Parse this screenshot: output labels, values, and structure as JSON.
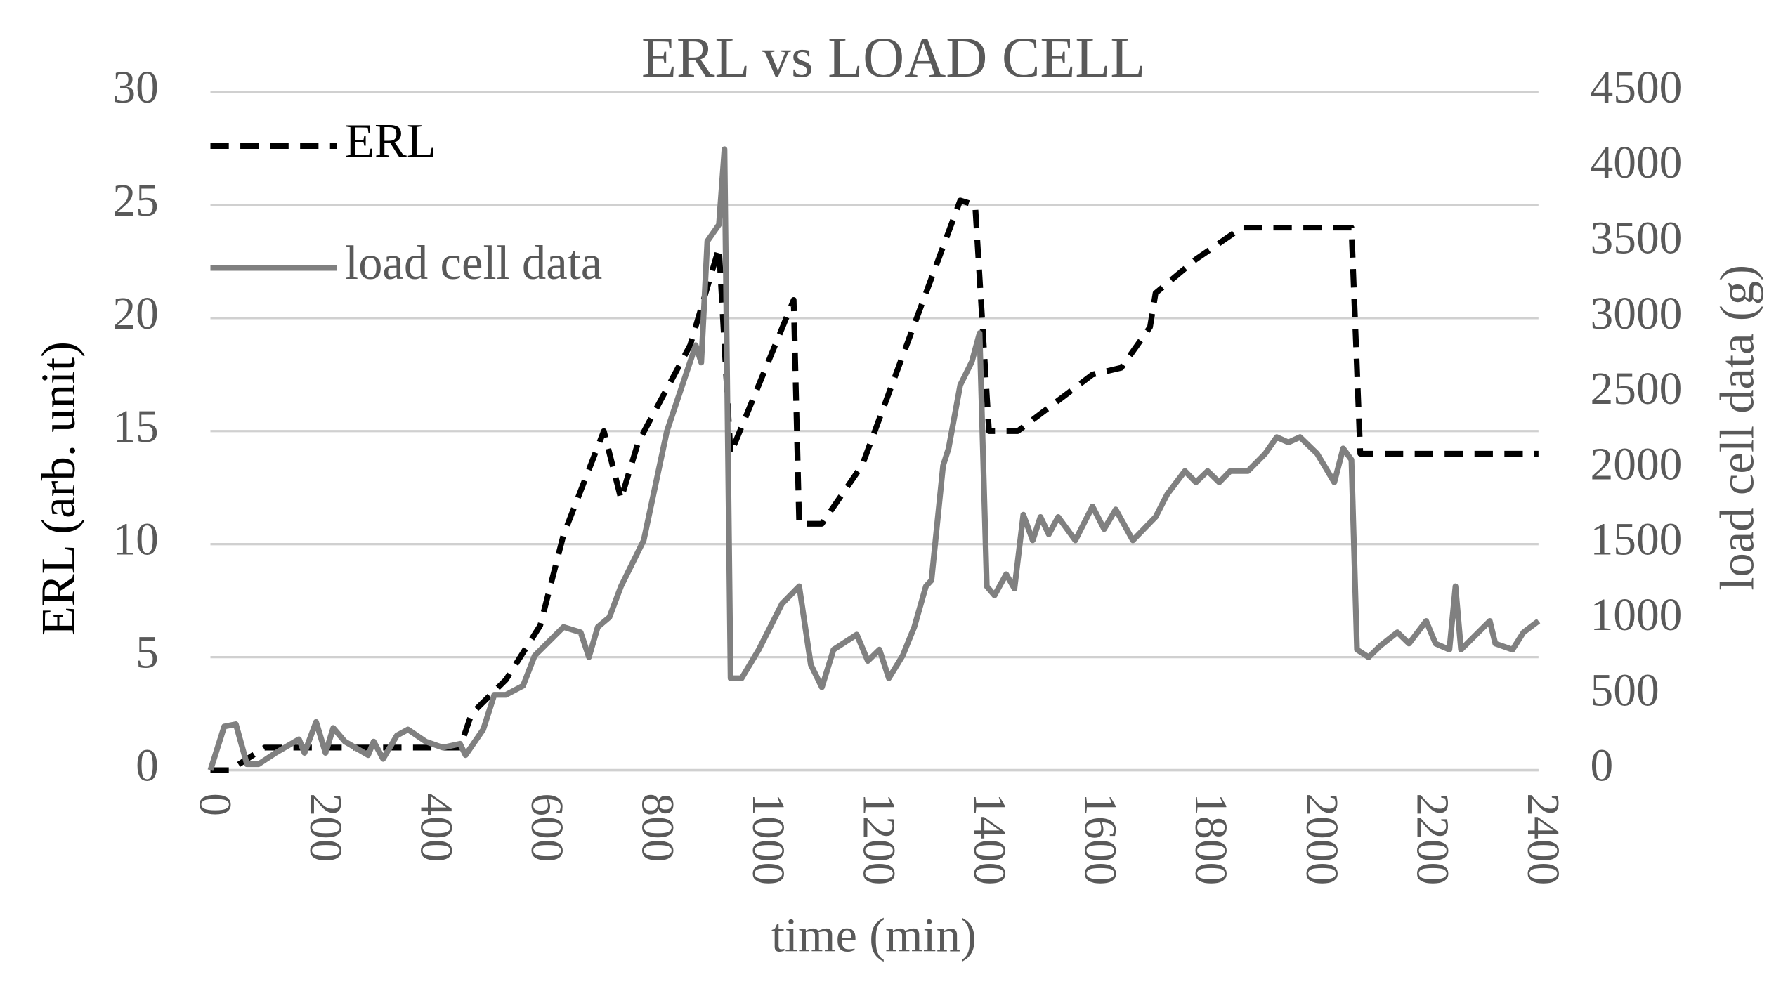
{
  "chart_data": {
    "type": "line",
    "title": "ERL vs LOAD CELL",
    "x_label": "time (min)",
    "y_label": "ERL (arb. unit)",
    "y2_label": "load cell data (g)",
    "xlim": [
      0,
      2400
    ],
    "xticks": [
      0,
      200,
      400,
      600,
      800,
      1000,
      1200,
      1400,
      1600,
      1800,
      2000,
      2200,
      2400
    ],
    "ylim": [
      0,
      30
    ],
    "yticks": [
      0,
      5,
      10,
      15,
      20,
      25,
      30
    ],
    "y2lim": [
      0,
      4500
    ],
    "y2ticks": [
      0,
      500,
      1000,
      1500,
      2000,
      2500,
      3000,
      3500,
      4000,
      4500
    ],
    "grid": true,
    "legend": "upper left",
    "series": [
      {
        "name": "ERL",
        "color": "#000000",
        "dash": true,
        "x": [
          0,
          35,
          98,
          389,
          451,
          472,
          534,
          596,
          638,
          711,
          742,
          773,
          867,
          919,
          940,
          1054,
          1064,
          1105,
          1178,
          1355,
          1382,
          1407,
          1459,
          1594,
          1646,
          1698,
          1708,
          1781,
          1864,
          2062,
          2078,
          2400
        ],
        "values": [
          0,
          0,
          1,
          1,
          1,
          2.5,
          4,
          6.4,
          10.4,
          15,
          12,
          14.5,
          18.8,
          23.1,
          14,
          20.8,
          10.9,
          10.9,
          13.5,
          25.2,
          25,
          15,
          15,
          17.5,
          17.8,
          19.6,
          21.1,
          22.6,
          24,
          24,
          14,
          14
        ]
      },
      {
        "name": "load cell data",
        "color": "#808080",
        "axis": "y2",
        "x": [
          0,
          25,
          46,
          66,
          87,
          118,
          160,
          170,
          191,
          208,
          222,
          243,
          285,
          295,
          312,
          337,
          357,
          389,
          420,
          451,
          461,
          493,
          513,
          534,
          565,
          586,
          638,
          669,
          684,
          700,
          721,
          742,
          783,
          794,
          825,
          856,
          877,
          887,
          898,
          919,
          929,
          940,
          960,
          991,
          1033,
          1064,
          1085,
          1105,
          1126,
          1168,
          1188,
          1209,
          1226,
          1251,
          1272,
          1293,
          1303,
          1324,
          1334,
          1355,
          1376,
          1390,
          1403,
          1417,
          1438,
          1453,
          1469,
          1486,
          1500,
          1515,
          1532,
          1563,
          1594,
          1615,
          1636,
          1667,
          1708,
          1729,
          1761,
          1781,
          1802,
          1823,
          1843,
          1875,
          1906,
          1927,
          1948,
          1969,
          2000,
          2031,
          2047,
          2062,
          2072,
          2093,
          2114,
          2145,
          2166,
          2197,
          2214,
          2239,
          2250,
          2260,
          2312,
          2322,
          2353,
          2373,
          2400
        ],
        "values": [
          0,
          290,
          305,
          40,
          40,
          115,
          205,
          115,
          320,
          115,
          280,
          190,
          100,
          190,
          75,
          230,
          270,
          190,
          150,
          175,
          100,
          270,
          500,
          500,
          560,
          760,
          950,
          915,
          750,
          950,
          1015,
          1220,
          1525,
          1715,
          2250,
          2590,
          2820,
          2705,
          3510,
          3620,
          4120,
          610,
          610,
          800,
          1105,
          1220,
          700,
          550,
          800,
          900,
          725,
          800,
          610,
          760,
          950,
          1220,
          1260,
          2020,
          2135,
          2555,
          2710,
          2900,
          1220,
          1160,
          1300,
          1205,
          1695,
          1525,
          1680,
          1565,
          1680,
          1525,
          1750,
          1600,
          1730,
          1525,
          1680,
          1830,
          1985,
          1910,
          1985,
          1910,
          1985,
          1985,
          2100,
          2210,
          2175,
          2210,
          2100,
          1910,
          2135,
          2060,
          800,
          750,
          825,
          915,
          840,
          990,
          840,
          800,
          1220,
          800,
          990,
          840,
          800,
          915,
          990
        ]
      }
    ]
  }
}
